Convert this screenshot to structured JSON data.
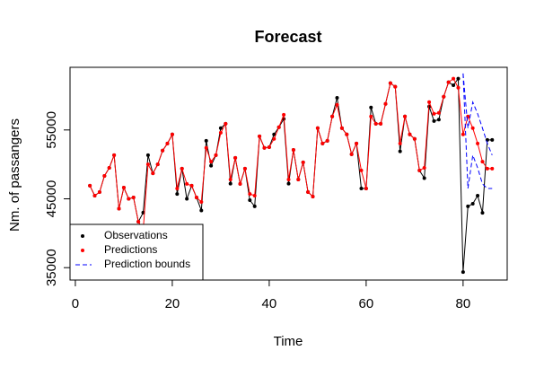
{
  "chart_data": {
    "type": "line",
    "title": "Forecast",
    "x_label": "Time",
    "y_label": "Nm. of passangers",
    "xlim": [
      -1.1,
      89.1
    ],
    "ylim": [
      33200,
      64100
    ],
    "xticks": [
      0,
      20,
      40,
      60,
      80
    ],
    "yticks": [
      35000,
      45000,
      55000
    ],
    "legend": "bottom-left",
    "series": [
      {
        "name": "Observations",
        "color": "#000000",
        "marker": "point",
        "x": [
          3,
          4,
          5,
          6,
          7,
          8,
          9,
          10,
          11,
          12,
          13,
          14,
          15,
          16,
          17,
          18,
          19,
          20,
          21,
          22,
          23,
          24,
          25,
          26,
          27,
          28,
          29,
          30,
          31,
          32,
          33,
          34,
          35,
          36,
          37,
          38,
          39,
          40,
          41,
          42,
          43,
          44,
          45,
          46,
          47,
          48,
          49,
          50,
          51,
          52,
          53,
          54,
          55,
          56,
          57,
          58,
          59,
          60,
          61,
          62,
          63,
          64,
          65,
          66,
          67,
          68,
          69,
          70,
          71,
          72,
          73,
          74,
          75,
          76,
          77,
          78,
          79,
          80,
          81,
          82,
          83,
          84,
          85,
          86
        ],
        "values": [
          46900,
          45460,
          45980,
          48330,
          49500,
          51340,
          43560,
          46630,
          45000,
          45200,
          41670,
          43000,
          51340,
          48700,
          50000,
          52000,
          53040,
          54350,
          45700,
          49380,
          45000,
          46900,
          45200,
          43300,
          53430,
          49800,
          51340,
          55260,
          55900,
          47200,
          50950,
          47160,
          49380,
          44800,
          43900,
          54080,
          52400,
          52500,
          54350,
          55400,
          56600,
          47200,
          52100,
          47800,
          50300,
          45980,
          45330,
          55260,
          53040,
          53430,
          56960,
          59660,
          55260,
          54350,
          51470,
          53040,
          46500,
          46500,
          58270,
          55900,
          55900,
          58790,
          61800,
          61280,
          51900,
          56960,
          54350,
          53700,
          49120,
          48000,
          58400,
          56300,
          56500,
          59830,
          61930,
          61500,
          62450,
          34350,
          43900,
          44280,
          45460,
          42970,
          53560,
          53560
        ]
      },
      {
        "name": "Predictions",
        "color": "#ff0000",
        "marker": "point",
        "x": [
          3,
          4,
          5,
          6,
          7,
          8,
          9,
          10,
          11,
          12,
          13,
          14,
          15,
          16,
          17,
          18,
          19,
          20,
          21,
          22,
          23,
          24,
          25,
          26,
          27,
          28,
          29,
          30,
          31,
          32,
          33,
          34,
          35,
          36,
          37,
          38,
          39,
          40,
          41,
          42,
          43,
          44,
          45,
          46,
          47,
          48,
          49,
          50,
          51,
          52,
          53,
          54,
          55,
          56,
          57,
          58,
          59,
          60,
          61,
          62,
          63,
          64,
          65,
          66,
          67,
          68,
          69,
          70,
          71,
          72,
          73,
          74,
          75,
          76,
          77,
          78,
          79,
          80,
          81,
          82,
          83,
          84,
          85,
          86
        ],
        "values": [
          46900,
          45460,
          45980,
          48330,
          49500,
          51340,
          43560,
          46630,
          45000,
          45200,
          41670,
          40500,
          50000,
          48700,
          50000,
          52000,
          53040,
          54350,
          46500,
          49380,
          47160,
          46900,
          45200,
          44540,
          52400,
          50400,
          51340,
          54600,
          55900,
          47800,
          50950,
          47160,
          49380,
          45700,
          45460,
          54080,
          52400,
          52500,
          53700,
          55400,
          57200,
          47800,
          52100,
          47800,
          50300,
          45980,
          45330,
          55260,
          53040,
          53430,
          56960,
          58660,
          55260,
          54350,
          51470,
          53040,
          49120,
          46500,
          56960,
          55900,
          55900,
          58790,
          61800,
          61280,
          53040,
          56960,
          54350,
          53700,
          49120,
          49500,
          59050,
          57350,
          57480,
          59830,
          61930,
          62450,
          61140,
          54350,
          56960,
          55260,
          53040,
          50400,
          49380,
          49380
        ]
      },
      {
        "name": "Prediction bounds",
        "color": "#0000ff",
        "marker": "dashed",
        "x": [
          80,
          81,
          82,
          83,
          84,
          85,
          86
        ],
        "values": [
          63200,
          55260,
          59050,
          57350,
          55260,
          53040,
          51340
        ],
        "lower": [
          63200,
          46500,
          51340,
          49500,
          47160,
          46500,
          46500
        ]
      }
    ]
  }
}
